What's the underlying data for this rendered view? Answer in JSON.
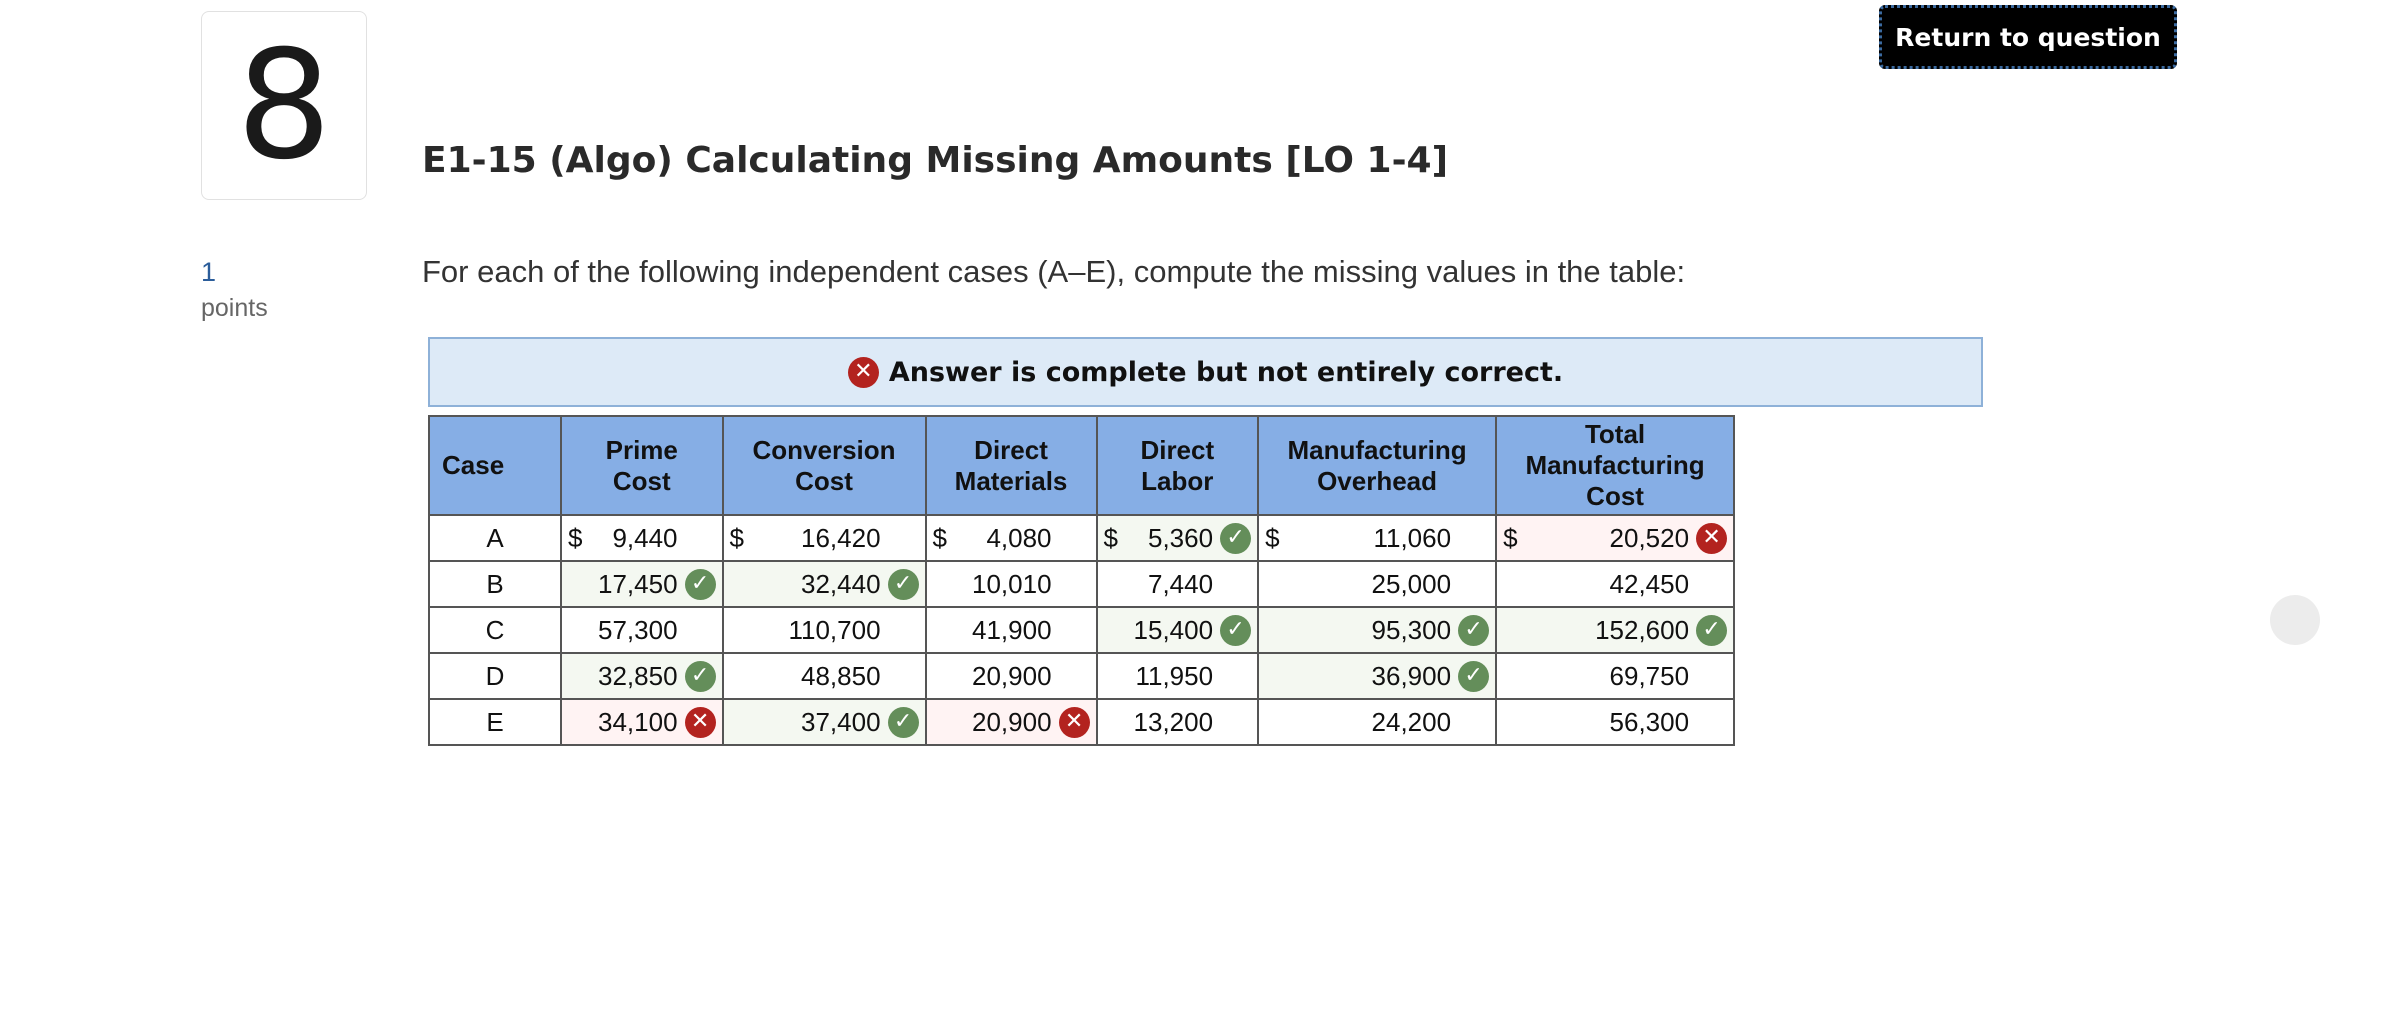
{
  "question": {
    "number": "8",
    "title": "E1-15 (Algo) Calculating Missing Amounts [LO 1-4]",
    "points_value": "1",
    "points_label": "points",
    "prompt": "For each of the following independent cases (A–E), compute the missing values in the table:"
  },
  "return_label": "Return to question",
  "banner": {
    "text": "Answer is complete but not entirely correct.",
    "icon": "x-circle-icon"
  },
  "table": {
    "headers": [
      "Case",
      "Prime\nCost",
      "Conversion\nCost",
      "Direct\nMaterials",
      "Direct\nLabor",
      "Manufacturing\nOverhead",
      "Total\nManufacturing\nCost"
    ],
    "rows": [
      {
        "case": "A",
        "cells": [
          {
            "cur": "$",
            "val": "9,440",
            "status": ""
          },
          {
            "cur": "$",
            "val": "16,420",
            "status": ""
          },
          {
            "cur": "$",
            "val": "4,080",
            "status": ""
          },
          {
            "cur": "$",
            "val": "5,360",
            "status": "correct"
          },
          {
            "cur": "$",
            "val": "11,060",
            "status": ""
          },
          {
            "cur": "$",
            "val": "20,520",
            "status": "incorrect"
          }
        ]
      },
      {
        "case": "B",
        "cells": [
          {
            "cur": "",
            "val": "17,450",
            "status": "correct"
          },
          {
            "cur": "",
            "val": "32,440",
            "status": "correct"
          },
          {
            "cur": "",
            "val": "10,010",
            "status": ""
          },
          {
            "cur": "",
            "val": "7,440",
            "status": ""
          },
          {
            "cur": "",
            "val": "25,000",
            "status": ""
          },
          {
            "cur": "",
            "val": "42,450",
            "status": ""
          }
        ]
      },
      {
        "case": "C",
        "cells": [
          {
            "cur": "",
            "val": "57,300",
            "status": ""
          },
          {
            "cur": "",
            "val": "110,700",
            "status": ""
          },
          {
            "cur": "",
            "val": "41,900",
            "status": ""
          },
          {
            "cur": "",
            "val": "15,400",
            "status": "correct"
          },
          {
            "cur": "",
            "val": "95,300",
            "status": "correct"
          },
          {
            "cur": "",
            "val": "152,600",
            "status": "correct"
          }
        ]
      },
      {
        "case": "D",
        "cells": [
          {
            "cur": "",
            "val": "32,850",
            "status": "correct"
          },
          {
            "cur": "",
            "val": "48,850",
            "status": ""
          },
          {
            "cur": "",
            "val": "20,900",
            "status": ""
          },
          {
            "cur": "",
            "val": "11,950",
            "status": ""
          },
          {
            "cur": "",
            "val": "36,900",
            "status": "correct"
          },
          {
            "cur": "",
            "val": "69,750",
            "status": ""
          }
        ]
      },
      {
        "case": "E",
        "cells": [
          {
            "cur": "",
            "val": "34,100",
            "status": "incorrect"
          },
          {
            "cur": "",
            "val": "37,400",
            "status": "correct"
          },
          {
            "cur": "",
            "val": "20,900",
            "status": "incorrect"
          },
          {
            "cur": "",
            "val": "13,200",
            "status": ""
          },
          {
            "cur": "",
            "val": "24,200",
            "status": ""
          },
          {
            "cur": "",
            "val": "56,300",
            "status": ""
          }
        ]
      }
    ]
  },
  "colors": {
    "correct": "#648e5a",
    "incorrect": "#b3231f",
    "header": "#86aee5",
    "banner": "#ddeaf7"
  }
}
